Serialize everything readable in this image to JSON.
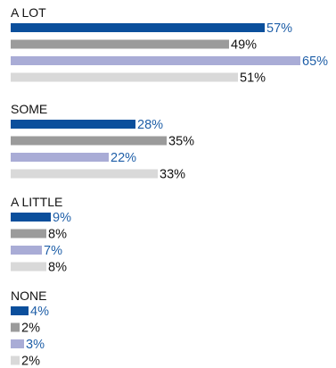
{
  "chart_data": {
    "type": "bar",
    "orientation": "horizontal",
    "value_suffix": "%",
    "xlim": [
      0,
      100
    ],
    "grid": false,
    "legend": "none",
    "groups": [
      {
        "label": "A LOT",
        "values": [
          57,
          49,
          65,
          51
        ]
      },
      {
        "label": "SOME",
        "values": [
          28,
          35,
          22,
          33
        ]
      },
      {
        "label": "A LITTLE",
        "values": [
          9,
          8,
          7,
          8
        ]
      },
      {
        "label": "NONE",
        "values": [
          4,
          2,
          3,
          2
        ]
      }
    ],
    "series_colors": [
      "#0b4f9c",
      "#9b9b9b",
      "#a9acd6",
      "#d9d9d9"
    ],
    "series_text_colors": [
      "#1f5fa8",
      "#111111",
      "#1f5fa8",
      "#111111"
    ]
  }
}
